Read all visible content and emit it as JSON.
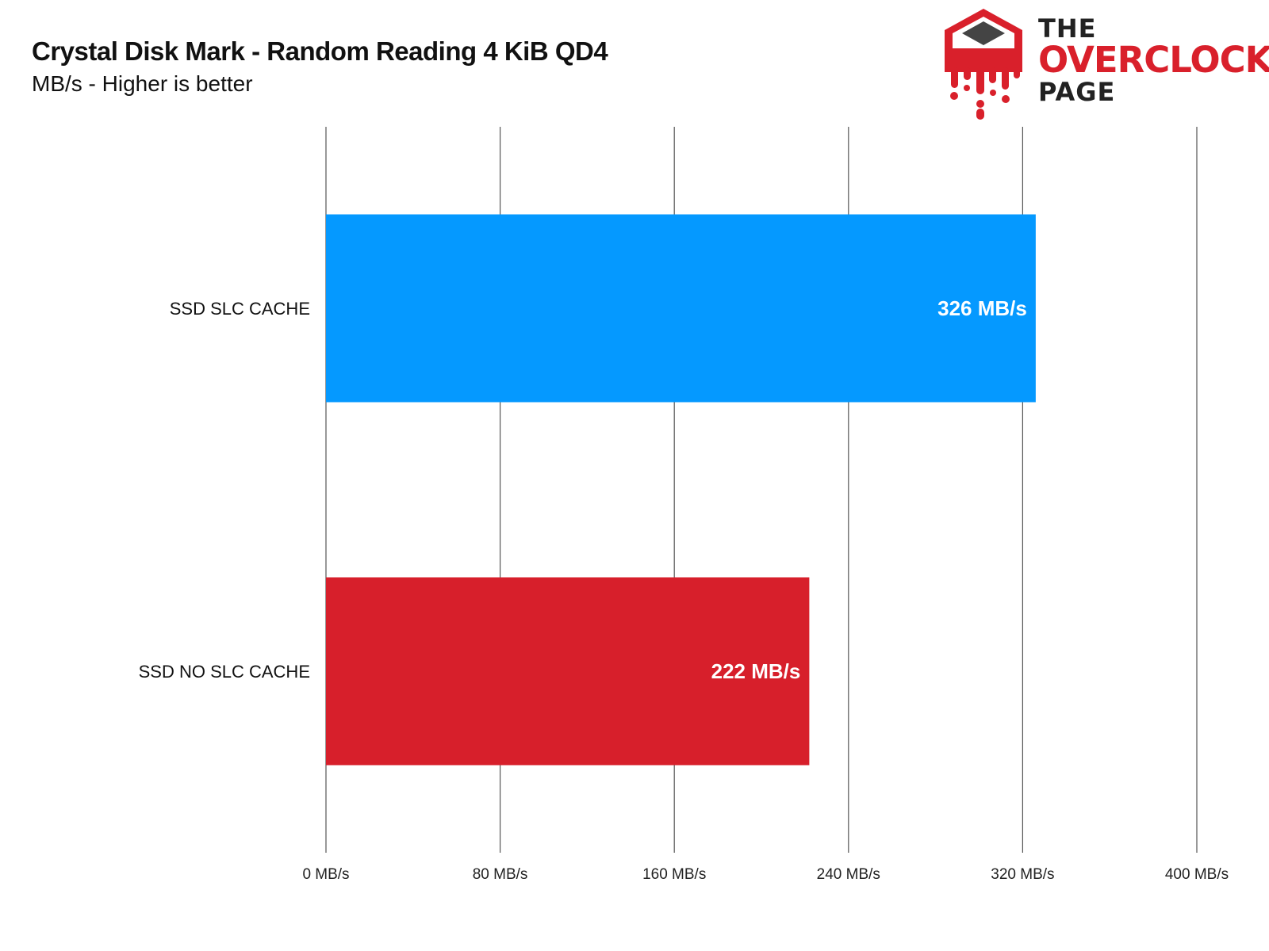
{
  "title": "Crystal Disk Mark - Random Reading 4 KiB QD4",
  "subtitle": "MB/s - Higher is better",
  "logo": {
    "line1": "THE",
    "line2": "OVERCLOCK",
    "line3": "PAGE",
    "brand_color": "#d9202b",
    "dark_color": "#222222",
    "icon": "melting-chip-icon"
  },
  "chart_data": {
    "type": "bar",
    "orientation": "horizontal",
    "categories": [
      "SSD SLC CACHE",
      "SSD NO SLC CACHE"
    ],
    "values": [
      326,
      222
    ],
    "value_labels": [
      "326 MB/s",
      "222 MB/s"
    ],
    "colors": [
      "#0599ff",
      "#d71f2b"
    ],
    "xlim": [
      0,
      400
    ],
    "xticks": [
      0,
      80,
      160,
      240,
      320,
      400
    ],
    "xtick_labels": [
      "0 MB/s",
      "80 MB/s",
      "160 MB/s",
      "240 MB/s",
      "320 MB/s",
      "400 MB/s"
    ],
    "grid": true
  }
}
